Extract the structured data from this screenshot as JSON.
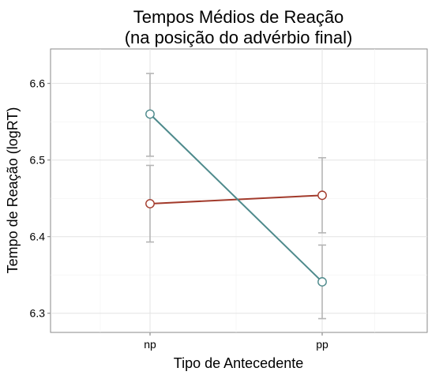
{
  "chart_data": {
    "type": "line",
    "title": [
      "Tempos Médios de Reação",
      "(na posição do advérbio final)"
    ],
    "xlabel": "Tipo de Antecedente",
    "ylabel": "Tempo de Reação (logRT)",
    "categories": [
      "np",
      "pp"
    ],
    "yticks": [
      6.3,
      6.4,
      6.5,
      6.6
    ],
    "ylim": [
      6.275,
      6.645
    ],
    "grid": true,
    "legend": "none",
    "series": [
      {
        "color": "#a23a2b",
        "values": [
          6.443,
          6.454
        ],
        "err_low": [
          6.393,
          6.405
        ],
        "err_high": [
          6.493,
          6.503
        ]
      },
      {
        "color": "#4e8a8c",
        "values": [
          6.56,
          6.341
        ],
        "err_low": [
          6.505,
          6.293
        ],
        "err_high": [
          6.613,
          6.389
        ]
      }
    ]
  }
}
